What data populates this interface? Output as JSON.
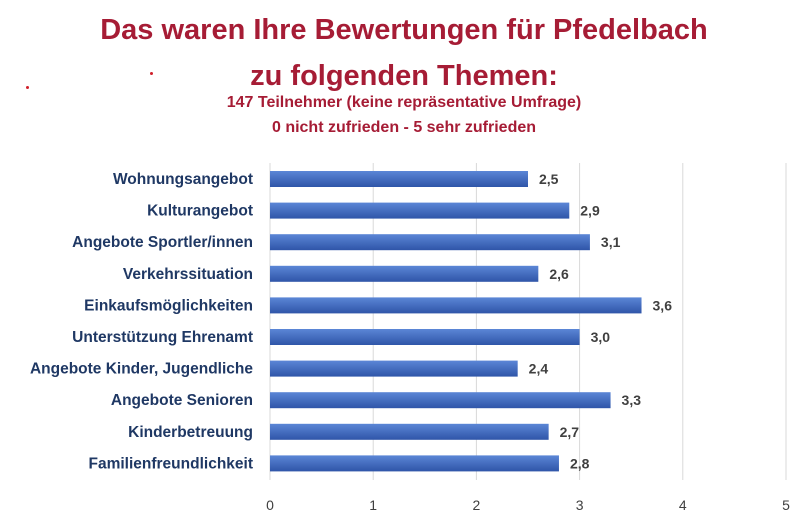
{
  "title_line1": "Das waren Ihre Bewertungen für Pfedelbach",
  "title_line2": "zu folgenden Themen:",
  "subtitle_line1": "147 Teilnehmer (keine repräsentative Umfrage)",
  "subtitle_line2": "0  nicht zufrieden - 5 sehr zufrieden",
  "colors": {
    "title": "#a61c35",
    "bar_top": "#5b86d6",
    "bar_bottom": "#2f55a8",
    "grid": "#d9d9d9",
    "category_text": "#1f3864",
    "value_text": "#404040"
  },
  "chart_data": {
    "type": "bar",
    "orientation": "horizontal",
    "categories": [
      "Wohnungsangebot",
      "Kulturangebot",
      "Angebote Sportler/innen",
      "Verkehrssituation",
      "Einkaufsmöglichkeiten",
      "Unterstützung Ehrenamt",
      "Angebote Kinder, Jugendliche",
      "Angebote Senioren",
      "Kinderbetreuung",
      "Familienfreundlichkeit"
    ],
    "values": [
      2.5,
      2.9,
      3.1,
      2.6,
      3.6,
      3.0,
      2.4,
      3.3,
      2.7,
      2.8
    ],
    "value_labels": [
      "2,5",
      "2,9",
      "3,1",
      "2,6",
      "3,6",
      "3,0",
      "2,4",
      "3,3",
      "2,7",
      "2,8"
    ],
    "xlim": [
      0,
      5
    ],
    "xticks": [
      0,
      1,
      2,
      3,
      4,
      5
    ],
    "grid": true,
    "legend": "none"
  }
}
